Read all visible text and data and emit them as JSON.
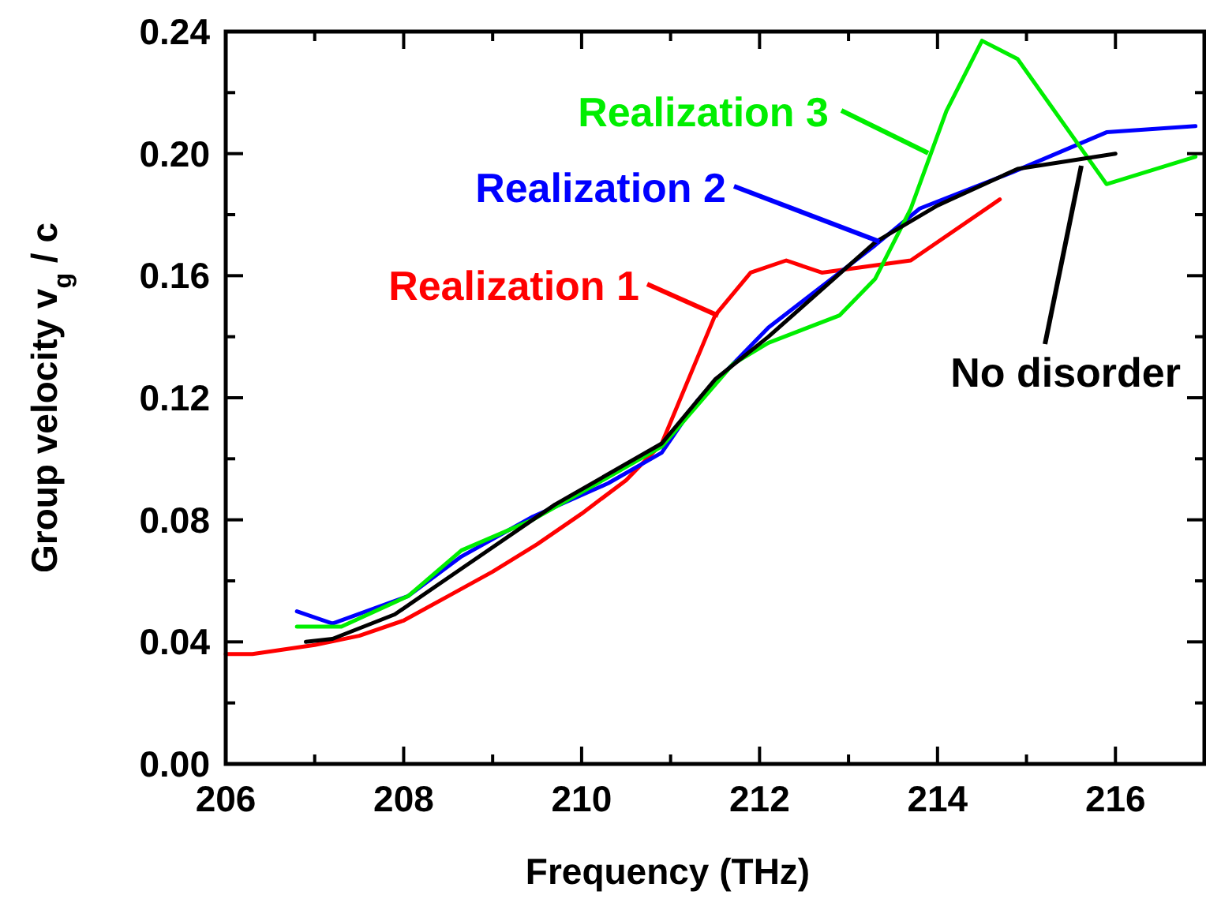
{
  "chart_data": {
    "type": "line",
    "xlabel": "Frequency (THz)",
    "ylabel": "Group velocity v$_{g}$ / c",
    "xlim": [
      206,
      217
    ],
    "ylim": [
      0,
      0.24
    ],
    "xticks": [
      206,
      {
        "value": 207,
        "label": null
      },
      208,
      {
        "value": 209,
        "label": null
      },
      210,
      {
        "value": 211,
        "label": null
      },
      212,
      {
        "value": 213,
        "label": null
      },
      214,
      {
        "value": 215,
        "label": null
      },
      216,
      {
        "value": 217,
        "label": null
      }
    ],
    "yticks": [
      {
        "value": 0,
        "label": "0.00"
      },
      {
        "value": 0.02,
        "label": null
      },
      0.04,
      {
        "value": 0.06,
        "label": null
      },
      0.08,
      {
        "value": 0.1,
        "label": null
      },
      0.12,
      {
        "value": 0.14,
        "label": null
      },
      0.16,
      {
        "value": 0.18,
        "label": null
      },
      {
        "value": 0.2,
        "label": "0.20"
      },
      {
        "value": 0.22,
        "label": null
      },
      0.24
    ],
    "legend": "top right",
    "grid": false,
    "marker": "none",
    "line_style": "solid",
    "series": [
      {
        "name": "Realization 1",
        "color": "#ff0000",
        "x": [
          206.0,
          206.3,
          207.0,
          207.5,
          208.0,
          208.5,
          209.0,
          209.5,
          210.0,
          210.5,
          210.9,
          211.5,
          211.9,
          212.3,
          212.7,
          213.7,
          214.7
        ],
        "values": [
          0.036,
          0.036,
          0.039,
          0.042,
          0.047,
          0.055,
          0.063,
          0.072,
          0.082,
          0.093,
          0.105,
          0.147,
          0.161,
          0.165,
          0.161,
          0.165,
          0.185
        ]
      },
      {
        "name": "Realization 2",
        "color": "#0000ff",
        "x": [
          206.8,
          207.2,
          208.05,
          208.65,
          209.45,
          210.3,
          210.9,
          211.3,
          212.1,
          212.5,
          213.3,
          213.8,
          214.85,
          215.9,
          216.9
        ],
        "values": [
          0.05,
          0.046,
          0.055,
          0.068,
          0.081,
          0.092,
          0.102,
          0.119,
          0.143,
          0.152,
          0.17,
          0.182,
          0.194,
          0.207,
          0.209
        ]
      },
      {
        "name": "Realization 3",
        "color": "#00ee00",
        "x": [
          206.8,
          207.3,
          208.05,
          208.65,
          209.45,
          210.3,
          210.9,
          211.7,
          212.1,
          212.9,
          213.3,
          213.7,
          214.1,
          214.5,
          214.9,
          215.9,
          216.9
        ],
        "values": [
          0.045,
          0.045,
          0.055,
          0.07,
          0.08,
          0.094,
          0.104,
          0.131,
          0.138,
          0.147,
          0.159,
          0.182,
          0.214,
          0.237,
          0.231,
          0.19,
          0.199
        ]
      },
      {
        "name": "No disorder",
        "color": "#000000",
        "x": [
          206.9,
          207.2,
          207.9,
          208.65,
          209.7,
          210.9,
          211.5,
          212.1,
          213.3,
          214.0,
          214.9,
          216.0
        ],
        "values": [
          0.04,
          0.041,
          0.049,
          0.064,
          0.085,
          0.105,
          0.126,
          0.14,
          0.171,
          0.183,
          0.195,
          0.2
        ]
      }
    ]
  }
}
